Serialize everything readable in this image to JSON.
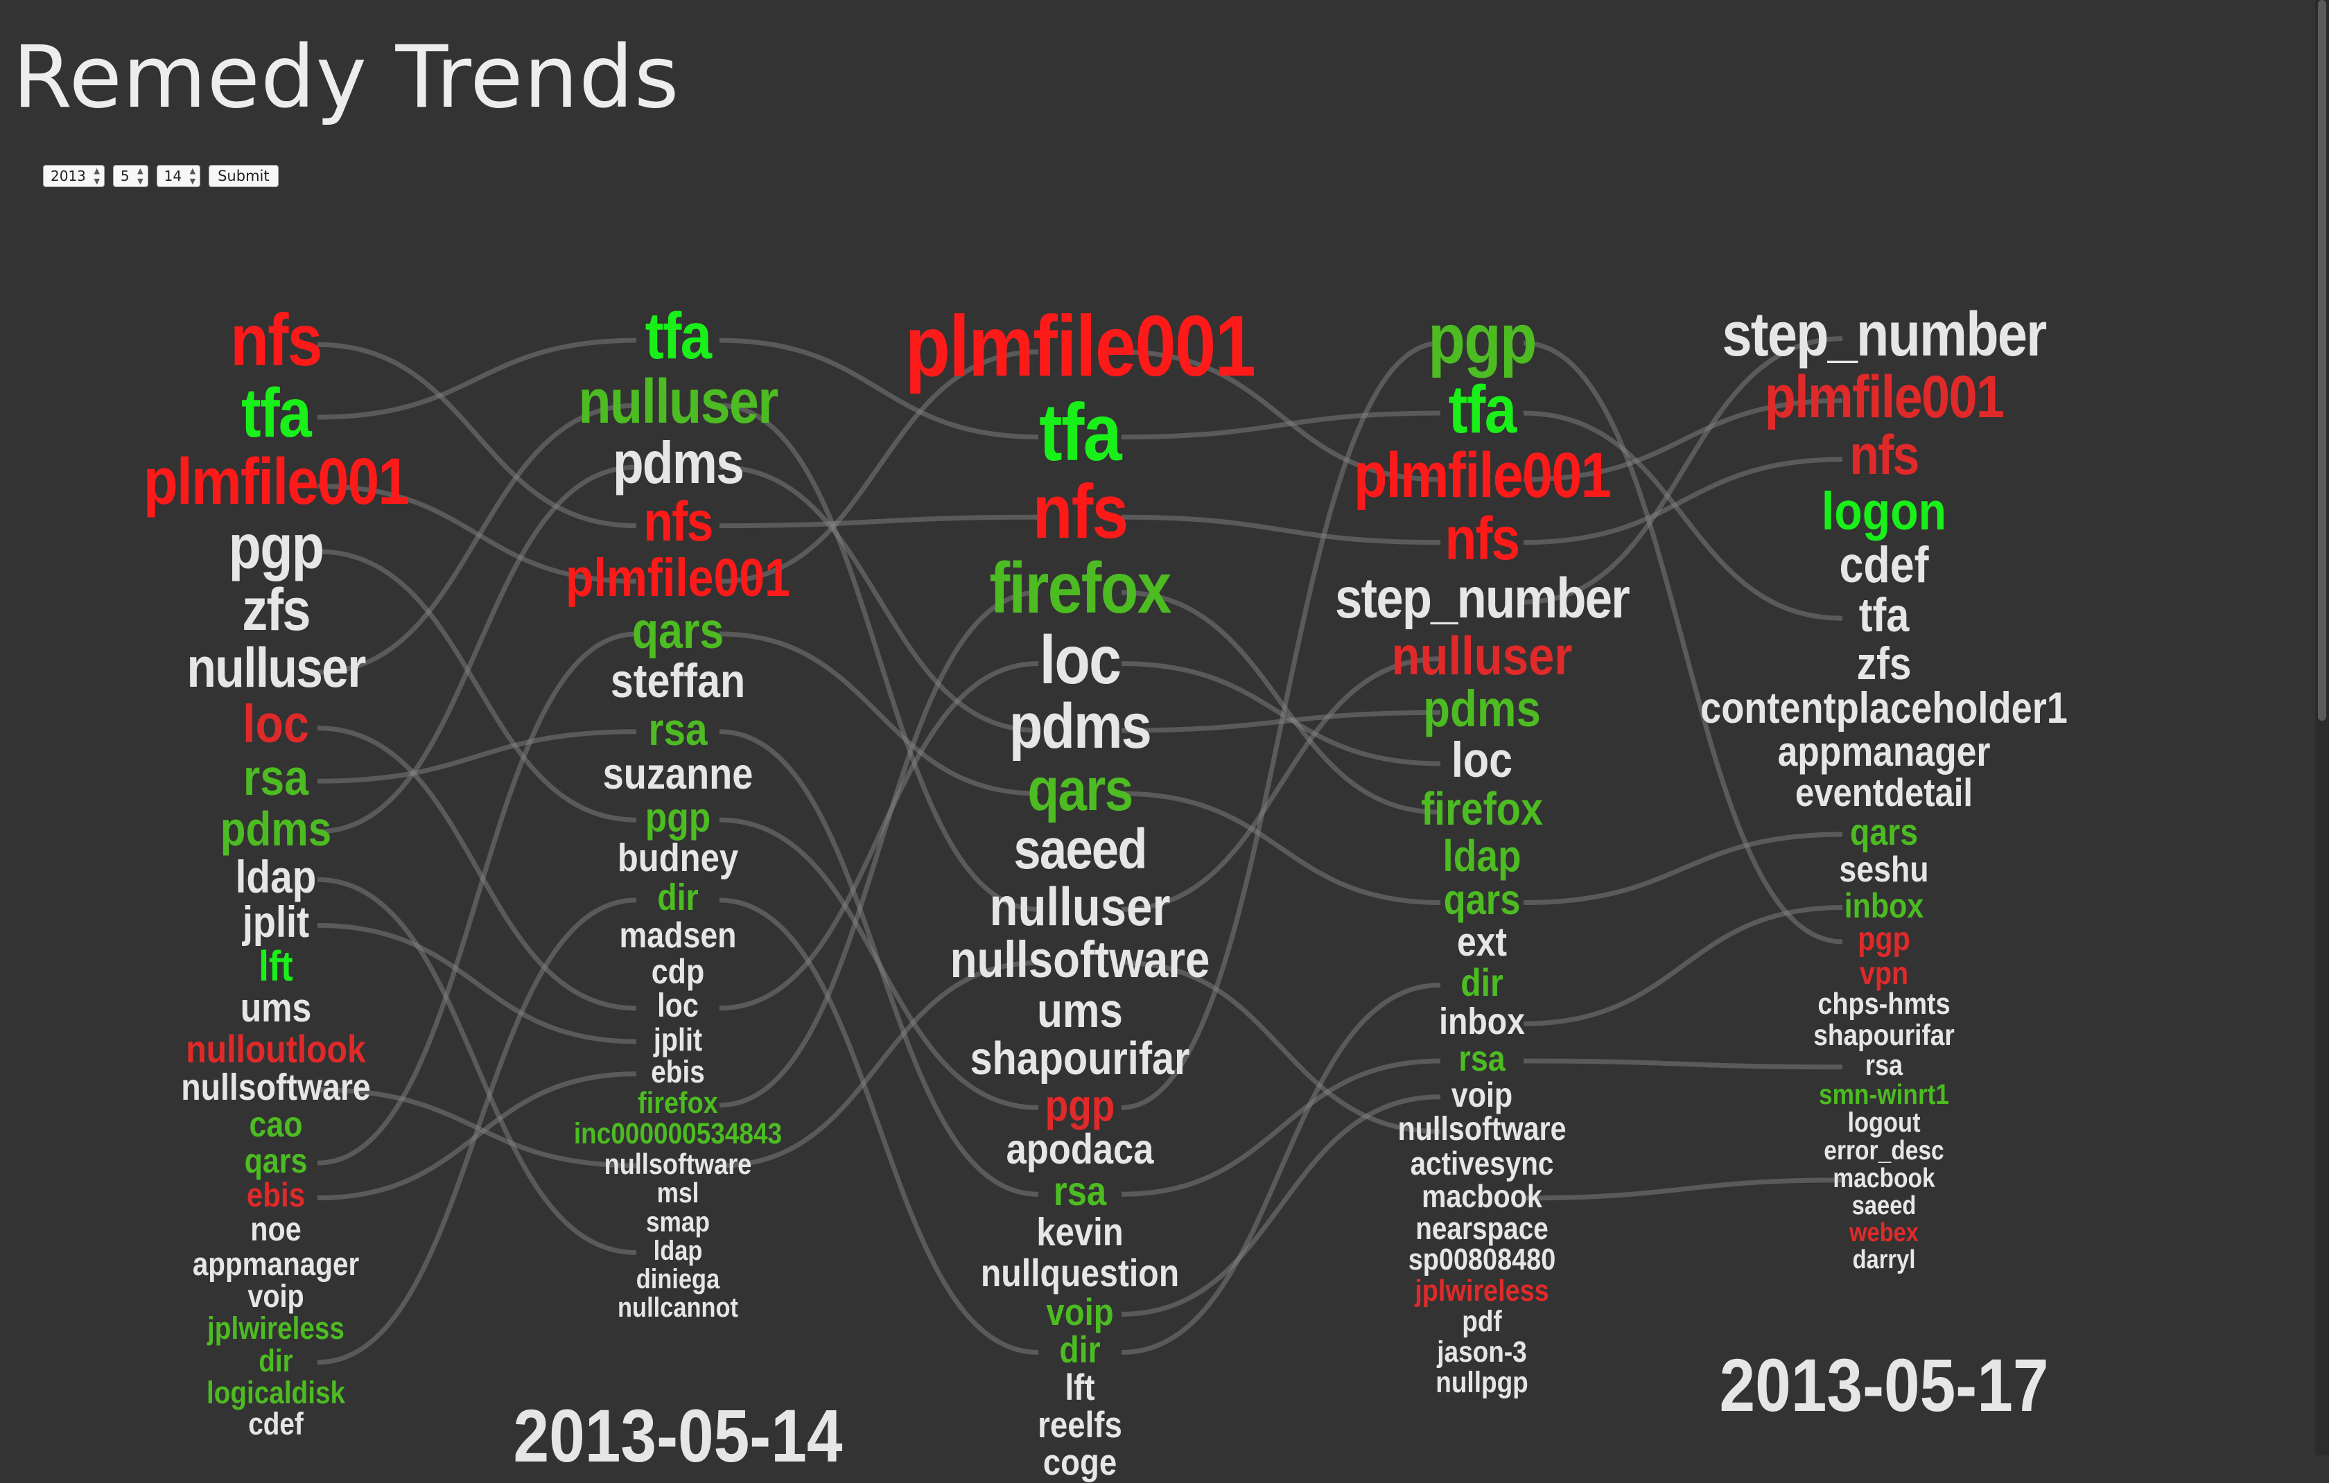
{
  "title": "Remedy Trends",
  "controls": {
    "year": "2013",
    "month": "5",
    "day": "14",
    "submit_label": "Submit"
  },
  "colors": {
    "background": "#333333",
    "neutral": "#e6e6e6",
    "red_hot": "#ff1a1a",
    "red": "#e02a2a",
    "green_bright": "#19f019",
    "green": "#4dbb22",
    "flow_line": "#8a8a8a"
  },
  "columns": [
    {
      "id": "col-1",
      "date_label": "",
      "terms": [
        {
          "text": "nfs",
          "color": "red_hot"
        },
        {
          "text": "tfa",
          "color": "green_bright"
        },
        {
          "text": "plmfile001",
          "color": "red_hot"
        },
        {
          "text": "pgp",
          "color": "neutral"
        },
        {
          "text": "zfs",
          "color": "neutral"
        },
        {
          "text": "nulluser",
          "color": "neutral"
        },
        {
          "text": "loc",
          "color": "red"
        },
        {
          "text": "rsa",
          "color": "green"
        },
        {
          "text": "pdms",
          "color": "green"
        },
        {
          "text": "ldap",
          "color": "neutral"
        },
        {
          "text": "jplit",
          "color": "neutral"
        },
        {
          "text": "lft",
          "color": "green_bright"
        },
        {
          "text": "ums",
          "color": "neutral"
        },
        {
          "text": "nulloutlook",
          "color": "red"
        },
        {
          "text": "nullsoftware",
          "color": "neutral"
        },
        {
          "text": "cao",
          "color": "green"
        },
        {
          "text": "qars",
          "color": "green"
        },
        {
          "text": "ebis",
          "color": "red"
        },
        {
          "text": "noe",
          "color": "neutral"
        },
        {
          "text": "appmanager",
          "color": "neutral"
        },
        {
          "text": "voip",
          "color": "neutral"
        },
        {
          "text": "jplwireless",
          "color": "green"
        },
        {
          "text": "dir",
          "color": "green"
        },
        {
          "text": "logicaldisk",
          "color": "green"
        },
        {
          "text": "cdef",
          "color": "neutral"
        }
      ]
    },
    {
      "id": "col-2",
      "date_label": "2013-05-14",
      "terms": [
        {
          "text": "tfa",
          "color": "green_bright"
        },
        {
          "text": "nulluser",
          "color": "green"
        },
        {
          "text": "pdms",
          "color": "neutral"
        },
        {
          "text": "nfs",
          "color": "red_hot"
        },
        {
          "text": "plmfile001",
          "color": "red_hot"
        },
        {
          "text": "qars",
          "color": "green"
        },
        {
          "text": "steffan",
          "color": "neutral"
        },
        {
          "text": "rsa",
          "color": "green"
        },
        {
          "text": "suzanne",
          "color": "neutral"
        },
        {
          "text": "pgp",
          "color": "green"
        },
        {
          "text": "budney",
          "color": "neutral"
        },
        {
          "text": "dir",
          "color": "green"
        },
        {
          "text": "madsen",
          "color": "neutral"
        },
        {
          "text": "cdp",
          "color": "neutral"
        },
        {
          "text": "loc",
          "color": "neutral"
        },
        {
          "text": "jplit",
          "color": "neutral"
        },
        {
          "text": "ebis",
          "color": "neutral"
        },
        {
          "text": "firefox",
          "color": "green"
        },
        {
          "text": "inc000000534843",
          "color": "green"
        },
        {
          "text": "nullsoftware",
          "color": "neutral"
        },
        {
          "text": "msl",
          "color": "neutral"
        },
        {
          "text": "smap",
          "color": "neutral"
        },
        {
          "text": "ldap",
          "color": "neutral"
        },
        {
          "text": "diniega",
          "color": "neutral"
        },
        {
          "text": "nullcannot",
          "color": "neutral"
        }
      ]
    },
    {
      "id": "col-3",
      "date_label": "",
      "terms": [
        {
          "text": "plmfile001",
          "color": "red_hot"
        },
        {
          "text": "tfa",
          "color": "green_bright"
        },
        {
          "text": "nfs",
          "color": "red_hot"
        },
        {
          "text": "firefox",
          "color": "green"
        },
        {
          "text": "loc",
          "color": "neutral"
        },
        {
          "text": "pdms",
          "color": "neutral"
        },
        {
          "text": "qars",
          "color": "green"
        },
        {
          "text": "saeed",
          "color": "neutral"
        },
        {
          "text": "nulluser",
          "color": "neutral"
        },
        {
          "text": "nullsoftware",
          "color": "neutral"
        },
        {
          "text": "ums",
          "color": "neutral"
        },
        {
          "text": "shapourifar",
          "color": "neutral"
        },
        {
          "text": "pgp",
          "color": "red"
        },
        {
          "text": "apodaca",
          "color": "neutral"
        },
        {
          "text": "rsa",
          "color": "green"
        },
        {
          "text": "kevin",
          "color": "neutral"
        },
        {
          "text": "nullquestion",
          "color": "neutral"
        },
        {
          "text": "voip",
          "color": "green"
        },
        {
          "text": "dir",
          "color": "green"
        },
        {
          "text": "lft",
          "color": "neutral"
        },
        {
          "text": "reelfs",
          "color": "neutral"
        },
        {
          "text": "coge",
          "color": "neutral"
        }
      ]
    },
    {
      "id": "col-4",
      "date_label": "",
      "terms": [
        {
          "text": "pgp",
          "color": "green"
        },
        {
          "text": "tfa",
          "color": "green_bright"
        },
        {
          "text": "plmfile001",
          "color": "red_hot"
        },
        {
          "text": "nfs",
          "color": "red_hot"
        },
        {
          "text": "step_number",
          "color": "neutral"
        },
        {
          "text": "nulluser",
          "color": "red"
        },
        {
          "text": "pdms",
          "color": "green"
        },
        {
          "text": "loc",
          "color": "neutral"
        },
        {
          "text": "firefox",
          "color": "green"
        },
        {
          "text": "ldap",
          "color": "green"
        },
        {
          "text": "qars",
          "color": "green"
        },
        {
          "text": "ext",
          "color": "neutral"
        },
        {
          "text": "dir",
          "color": "green"
        },
        {
          "text": "inbox",
          "color": "neutral"
        },
        {
          "text": "rsa",
          "color": "green"
        },
        {
          "text": "voip",
          "color": "neutral"
        },
        {
          "text": "nullsoftware",
          "color": "neutral"
        },
        {
          "text": "activesync",
          "color": "neutral"
        },
        {
          "text": "macbook",
          "color": "neutral"
        },
        {
          "text": "nearspace",
          "color": "neutral"
        },
        {
          "text": "sp00808480",
          "color": "neutral"
        },
        {
          "text": "jplwireless",
          "color": "red"
        },
        {
          "text": "pdf",
          "color": "neutral"
        },
        {
          "text": "jason-3",
          "color": "neutral"
        },
        {
          "text": "nullpgp",
          "color": "neutral"
        }
      ]
    },
    {
      "id": "col-5",
      "date_label": "2013-05-17",
      "terms": [
        {
          "text": "step_number",
          "color": "neutral"
        },
        {
          "text": "plmfile001",
          "color": "red"
        },
        {
          "text": "nfs",
          "color": "red"
        },
        {
          "text": "logon",
          "color": "green_bright"
        },
        {
          "text": "cdef",
          "color": "neutral"
        },
        {
          "text": "tfa",
          "color": "neutral"
        },
        {
          "text": "zfs",
          "color": "neutral"
        },
        {
          "text": "contentplaceholder1",
          "color": "neutral"
        },
        {
          "text": "appmanager",
          "color": "neutral"
        },
        {
          "text": "eventdetail",
          "color": "neutral"
        },
        {
          "text": "qars",
          "color": "green"
        },
        {
          "text": "seshu",
          "color": "neutral"
        },
        {
          "text": "inbox",
          "color": "green"
        },
        {
          "text": "pgp",
          "color": "red"
        },
        {
          "text": "vpn",
          "color": "red"
        },
        {
          "text": "chps-hmts",
          "color": "neutral"
        },
        {
          "text": "shapourifar",
          "color": "neutral"
        },
        {
          "text": "rsa",
          "color": "neutral"
        },
        {
          "text": "smn-winrt1",
          "color": "green"
        },
        {
          "text": "logout",
          "color": "neutral"
        },
        {
          "text": "error_desc",
          "color": "neutral"
        },
        {
          "text": "macbook",
          "color": "neutral"
        },
        {
          "text": "saeed",
          "color": "neutral"
        },
        {
          "text": "webex",
          "color": "red"
        },
        {
          "text": "darryl",
          "color": "neutral"
        }
      ]
    }
  ]
}
